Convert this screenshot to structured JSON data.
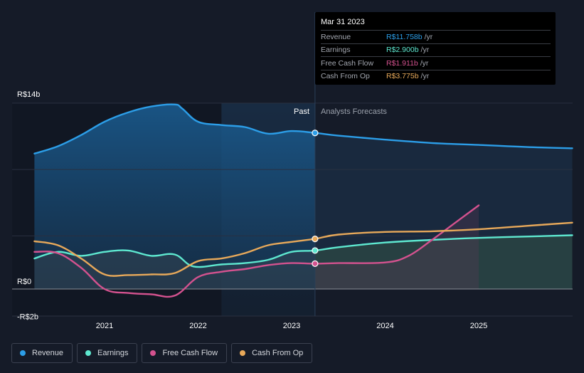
{
  "tooltip": {
    "date": "Mar 31 2023",
    "rows": [
      {
        "label": "Revenue",
        "value": "R$11.758b",
        "unit": "/yr",
        "color": "#2c9ee8"
      },
      {
        "label": "Earnings",
        "value": "R$2.900b",
        "unit": "/yr",
        "color": "#5ee8d0"
      },
      {
        "label": "Free Cash Flow",
        "value": "R$1.911b",
        "unit": "/yr",
        "color": "#d4528f"
      },
      {
        "label": "Cash From Op",
        "value": "R$3.775b",
        "unit": "/yr",
        "color": "#e8a95a"
      }
    ]
  },
  "labels": {
    "past": "Past",
    "forecast": "Analysts Forecasts"
  },
  "legend": [
    {
      "label": "Revenue",
      "color": "#2c9ee8"
    },
    {
      "label": "Earnings",
      "color": "#5ee8d0"
    },
    {
      "label": "Free Cash Flow",
      "color": "#d4528f"
    },
    {
      "label": "Cash From Op",
      "color": "#e8a95a"
    }
  ],
  "chart_data": {
    "type": "line",
    "title": "",
    "xlabel": "",
    "ylabel": "",
    "x_range": [
      2020.25,
      2026.0
    ],
    "ylim": [
      -2,
      14
    ],
    "y_ticks": [
      {
        "value": 14,
        "label": "R$14b"
      },
      {
        "value": 0,
        "label": "R$0"
      },
      {
        "value": -2,
        "label": "-R$2b"
      }
    ],
    "x_ticks": [
      {
        "value": 2021,
        "label": "2021"
      },
      {
        "value": 2022,
        "label": "2022"
      },
      {
        "value": 2023,
        "label": "2023"
      },
      {
        "value": 2024,
        "label": "2024"
      },
      {
        "value": 2025,
        "label": "2025"
      }
    ],
    "past_end": 2023.25,
    "highlight_start": 2022.25,
    "series": [
      {
        "name": "Revenue",
        "color": "#2c9ee8",
        "points": [
          [
            2020.25,
            10.2
          ],
          [
            2020.5,
            10.75
          ],
          [
            2020.75,
            11.6
          ],
          [
            2021.0,
            12.6
          ],
          [
            2021.25,
            13.3
          ],
          [
            2021.5,
            13.75
          ],
          [
            2021.75,
            13.9
          ],
          [
            2021.83,
            13.6
          ],
          [
            2022.0,
            12.6
          ],
          [
            2022.25,
            12.35
          ],
          [
            2022.5,
            12.2
          ],
          [
            2022.75,
            11.7
          ],
          [
            2023.0,
            11.9
          ],
          [
            2023.25,
            11.758
          ],
          [
            2023.5,
            11.55
          ],
          [
            2024.0,
            11.25
          ],
          [
            2024.5,
            11.0
          ],
          [
            2025.0,
            10.85
          ],
          [
            2025.5,
            10.7
          ],
          [
            2026.0,
            10.6
          ]
        ]
      },
      {
        "name": "Earnings",
        "color": "#5ee8d0",
        "points": [
          [
            2020.25,
            2.3
          ],
          [
            2020.5,
            2.8
          ],
          [
            2020.75,
            2.5
          ],
          [
            2021.0,
            2.8
          ],
          [
            2021.25,
            2.9
          ],
          [
            2021.5,
            2.5
          ],
          [
            2021.75,
            2.6
          ],
          [
            2021.95,
            1.7
          ],
          [
            2022.25,
            1.85
          ],
          [
            2022.5,
            1.95
          ],
          [
            2022.75,
            2.2
          ],
          [
            2023.0,
            2.8
          ],
          [
            2023.25,
            2.9
          ],
          [
            2023.5,
            3.15
          ],
          [
            2024.0,
            3.5
          ],
          [
            2024.5,
            3.7
          ],
          [
            2025.0,
            3.85
          ],
          [
            2025.5,
            3.95
          ],
          [
            2026.0,
            4.05
          ]
        ]
      },
      {
        "name": "Free Cash Flow",
        "color": "#d4528f",
        "points": [
          [
            2020.25,
            2.8
          ],
          [
            2020.5,
            2.7
          ],
          [
            2020.75,
            1.6
          ],
          [
            2021.0,
            0.0
          ],
          [
            2021.25,
            -0.3
          ],
          [
            2021.5,
            -0.4
          ],
          [
            2021.75,
            -0.5
          ],
          [
            2022.0,
            0.9
          ],
          [
            2022.25,
            1.3
          ],
          [
            2022.5,
            1.5
          ],
          [
            2022.75,
            1.8
          ],
          [
            2023.0,
            1.95
          ],
          [
            2023.25,
            1.911
          ],
          [
            2023.5,
            1.95
          ],
          [
            2024.0,
            2.0
          ],
          [
            2024.25,
            2.5
          ],
          [
            2024.5,
            3.7
          ],
          [
            2024.75,
            5.0
          ],
          [
            2025.0,
            6.3
          ]
        ]
      },
      {
        "name": "Cash From Op",
        "color": "#e8a95a",
        "points": [
          [
            2020.25,
            3.6
          ],
          [
            2020.5,
            3.3
          ],
          [
            2020.75,
            2.3
          ],
          [
            2021.0,
            1.1
          ],
          [
            2021.25,
            1.05
          ],
          [
            2021.5,
            1.1
          ],
          [
            2021.75,
            1.2
          ],
          [
            2022.0,
            2.1
          ],
          [
            2022.25,
            2.3
          ],
          [
            2022.5,
            2.7
          ],
          [
            2022.75,
            3.3
          ],
          [
            2023.0,
            3.55
          ],
          [
            2023.25,
            3.775
          ],
          [
            2023.5,
            4.1
          ],
          [
            2024.0,
            4.3
          ],
          [
            2024.5,
            4.35
          ],
          [
            2025.0,
            4.5
          ],
          [
            2025.5,
            4.75
          ],
          [
            2026.0,
            5.0
          ]
        ]
      }
    ]
  }
}
